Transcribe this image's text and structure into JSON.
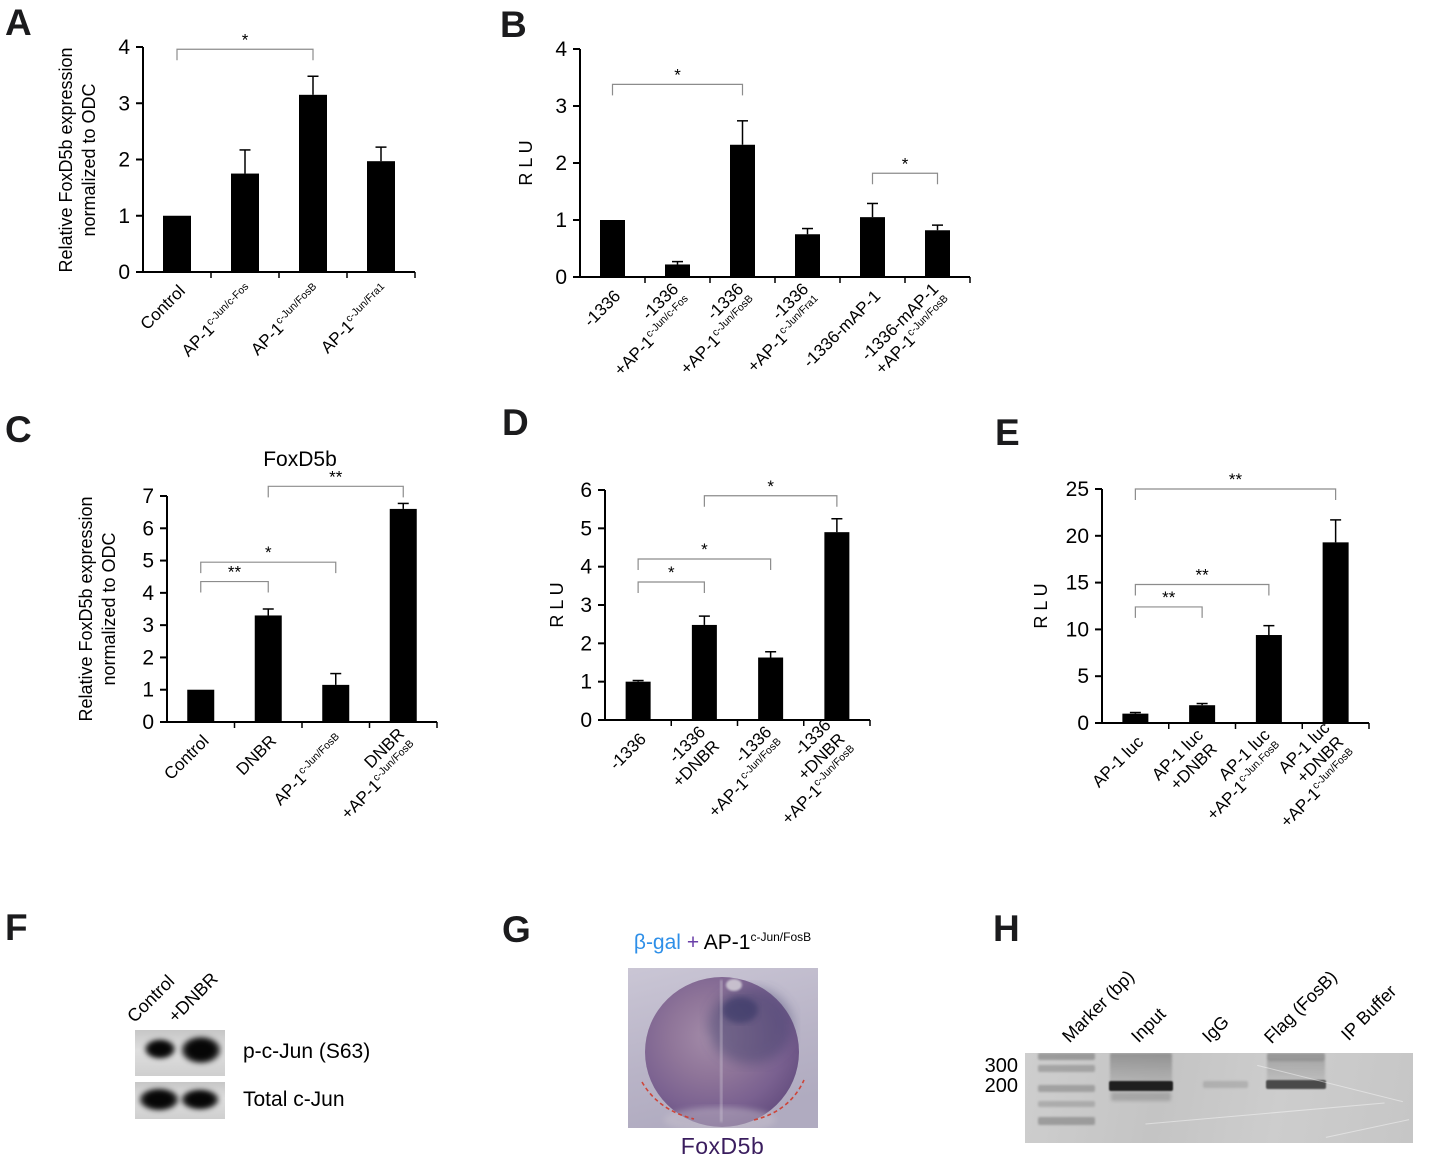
{
  "chart_data": [
    {
      "panel": "A",
      "type": "bar",
      "title": "",
      "ylabel_lines": [
        "Relative FoxD5b expression",
        "normalized to ODC"
      ],
      "categories": [
        [
          {
            "t": "Control"
          }
        ],
        [
          {
            "t": "AP-1",
            "s": "c-Jun/c-Fos"
          }
        ],
        [
          {
            "t": "AP-1",
            "s": "c-Jun/FosB"
          }
        ],
        [
          {
            "t": "AP-1",
            "s": "c-Jun/Fra1"
          }
        ]
      ],
      "values": [
        1.0,
        1.75,
        3.15,
        1.97
      ],
      "errors": [
        0,
        0.42,
        0.33,
        0.25
      ],
      "ylim": [
        0,
        4
      ],
      "yticks": [
        0,
        1,
        2,
        3,
        4
      ],
      "brackets": [
        {
          "from": 0,
          "to": 2,
          "y": 3.96,
          "label": "*"
        }
      ],
      "bar_color": "#000000",
      "bracket_color": "#8c8c8c"
    },
    {
      "panel": "B",
      "type": "bar",
      "title": "",
      "ylabel_lines": [
        "R L U"
      ],
      "categories": [
        [
          {
            "t": "-1336"
          }
        ],
        [
          {
            "t": "-1336"
          },
          {
            "t": "+AP-1",
            "s": "c-Jun/c-Fos"
          }
        ],
        [
          {
            "t": "-1336"
          },
          {
            "t": "+AP-1",
            "s": "c-Jun/FosB"
          }
        ],
        [
          {
            "t": "-1336"
          },
          {
            "t": "+AP-1",
            "s": "c-Jun/Fra1"
          }
        ],
        [
          {
            "t": "-1336-mAP-1"
          }
        ],
        [
          {
            "t": "-1336-mAP-1"
          },
          {
            "t": "+AP-1",
            "s": "c-Jun/FosB"
          }
        ]
      ],
      "values": [
        1.0,
        0.22,
        2.32,
        0.75,
        1.05,
        0.82
      ],
      "errors": [
        0,
        0.05,
        0.42,
        0.1,
        0.24,
        0.09
      ],
      "ylim": [
        0,
        4
      ],
      "yticks": [
        0,
        1,
        2,
        3,
        4
      ],
      "brackets": [
        {
          "from": 0,
          "to": 2,
          "y": 3.38,
          "label": "*"
        },
        {
          "from": 4,
          "to": 5,
          "y": 1.82,
          "label": "*"
        }
      ],
      "bar_color": "#000000",
      "bracket_color": "#8c8c8c"
    },
    {
      "panel": "C",
      "type": "bar",
      "title": "FoxD5b",
      "ylabel_lines": [
        "Relative FoxD5b expression",
        "normalized to ODC"
      ],
      "categories": [
        [
          {
            "t": "Control"
          }
        ],
        [
          {
            "t": "DNBR"
          }
        ],
        [
          {
            "t": "AP-1",
            "s": "c-Jun/FosB"
          }
        ],
        [
          {
            "t": "DNBR"
          },
          {
            "t": "+AP-1",
            "s": "c-Jun/FosB"
          }
        ]
      ],
      "values": [
        1.0,
        3.3,
        1.15,
        6.6
      ],
      "errors": [
        0,
        0.2,
        0.35,
        0.17
      ],
      "ylim": [
        0,
        7
      ],
      "yticks": [
        0,
        1,
        2,
        3,
        4,
        5,
        6,
        7
      ],
      "brackets": [
        {
          "from": 0,
          "to": 1,
          "y": 4.35,
          "label": "**"
        },
        {
          "from": 0,
          "to": 2,
          "y": 4.95,
          "label": "*"
        },
        {
          "from": 1,
          "to": 3,
          "y": 7.3,
          "label": "**"
        }
      ],
      "bar_color": "#000000",
      "bracket_color": "#8c8c8c"
    },
    {
      "panel": "D",
      "type": "bar",
      "title": "",
      "ylabel_lines": [
        "R L U"
      ],
      "categories": [
        [
          {
            "t": "-1336"
          }
        ],
        [
          {
            "t": "-1336"
          },
          {
            "t": "+DNBR"
          }
        ],
        [
          {
            "t": "-1336"
          },
          {
            "t": "+AP-1",
            "s": "c-Jun/FosB"
          }
        ],
        [
          {
            "t": "-1336"
          },
          {
            "t": "+DNBR"
          },
          {
            "t": "+AP-1",
            "s": "c-Jun/FosB"
          }
        ]
      ],
      "values": [
        1.0,
        2.48,
        1.63,
        4.9
      ],
      "errors": [
        0.03,
        0.23,
        0.15,
        0.35
      ],
      "ylim": [
        0,
        6
      ],
      "yticks": [
        0,
        1,
        2,
        3,
        4,
        5,
        6
      ],
      "brackets": [
        {
          "from": 0,
          "to": 1,
          "y": 3.6,
          "label": "*"
        },
        {
          "from": 0,
          "to": 2,
          "y": 4.2,
          "label": "*"
        },
        {
          "from": 1,
          "to": 3,
          "y": 5.85,
          "label": "*"
        }
      ],
      "bar_color": "#000000",
      "bracket_color": "#8c8c8c"
    },
    {
      "panel": "E",
      "type": "bar",
      "title": "",
      "ylabel_lines": [
        "R L U"
      ],
      "categories": [
        [
          {
            "t": "AP-1 luc"
          }
        ],
        [
          {
            "t": "AP-1 luc"
          },
          {
            "t": "+DNBR"
          }
        ],
        [
          {
            "t": "AP-1 luc"
          },
          {
            "t": "+AP-1",
            "s": "c-Jun.FosB"
          }
        ],
        [
          {
            "t": "AP-1 luc"
          },
          {
            "t": "+DNBR"
          },
          {
            "t": "+AP-1",
            "s": "c-Jun/FosB"
          }
        ]
      ],
      "values": [
        1.0,
        1.9,
        9.4,
        19.3
      ],
      "errors": [
        0.12,
        0.18,
        1.0,
        2.4
      ],
      "ylim": [
        0,
        25
      ],
      "yticks": [
        0,
        5,
        10,
        15,
        20,
        25
      ],
      "brackets": [
        {
          "from": 0,
          "to": 1,
          "y": 12.4,
          "label": "**"
        },
        {
          "from": 0,
          "to": 2,
          "y": 14.8,
          "label": "**"
        },
        {
          "from": 0,
          "to": 3,
          "y": 25,
          "label": "**"
        }
      ],
      "bar_color": "#000000",
      "bracket_color": "#8c8c8c"
    }
  ],
  "blot_panel": {
    "letter": "F",
    "lane_labels": [
      "Control",
      "+DNBR"
    ],
    "rows": [
      {
        "label": "p-c-Jun (S63)"
      },
      {
        "label": "Total c-Jun"
      }
    ]
  },
  "embryo_panel": {
    "letter": "G",
    "title_parts": {
      "injection": "β-gal",
      "plus": "+",
      "construct": "AP-1",
      "construct_sup": "c-Jun/FosB"
    },
    "caption": "FoxD5b",
    "colors": {
      "injection_text": "#2e8fe8",
      "plus_text": "#6a3fa8",
      "construct_text": "#000000",
      "caption_text": "#3a1d5e"
    }
  },
  "gel_panel": {
    "letter": "H",
    "lane_labels": [
      "Marker (bp)",
      "Input",
      "IgG",
      "Flag (FosB)",
      "IP Buffer"
    ],
    "size_markers": [
      "300",
      "200"
    ]
  }
}
